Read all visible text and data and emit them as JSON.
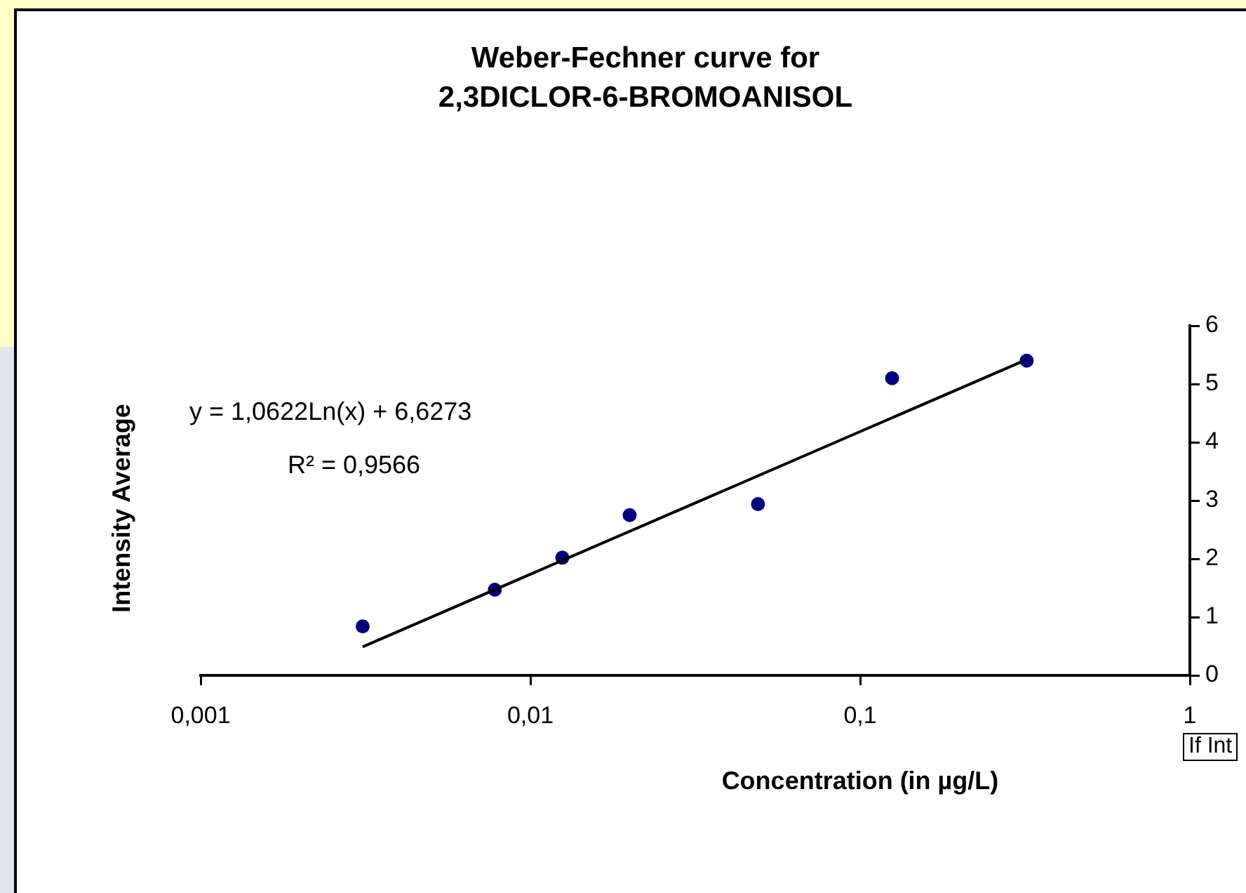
{
  "chart_data": {
    "type": "scatter",
    "title": "Weber-Fechner curve for 2,3DICLOR-6-BROMOANISOL",
    "xlabel": "Concentration (in µg/L)",
    "ylabel": "Intensity Average",
    "annotations": [
      "y = 1,0622Ln(x) + 6,6273",
      "R² = 0,9566",
      "If Int"
    ],
    "x": [
      0.0031,
      0.0078,
      0.0125,
      0.02,
      0.049,
      0.125,
      0.32
    ],
    "series": [
      {
        "type": "scatter",
        "color": "#000080",
        "values": [
          0.84,
          1.47,
          2.02,
          2.75,
          2.94,
          5.1,
          5.4
        ],
        "marker": "circle"
      },
      {
        "type": "line",
        "color": "#000000",
        "x": [
          0.0031,
          0.32
        ],
        "values": [
          0.49,
          5.42
        ],
        "marker": "none",
        "line_style": "solid"
      }
    ],
    "log": "x",
    "xlim": [
      0.001,
      1
    ],
    "xticks": [
      {
        "value": 0.001,
        "label": "0,001"
      },
      {
        "value": 0.01,
        "label": "0,01"
      },
      {
        "value": 0.1,
        "label": "0,1"
      },
      1
    ],
    "ylim": [
      0,
      6
    ],
    "yticks": [
      0,
      1,
      2,
      3,
      4,
      5,
      6
    ],
    "grid": false,
    "legend": false
  }
}
